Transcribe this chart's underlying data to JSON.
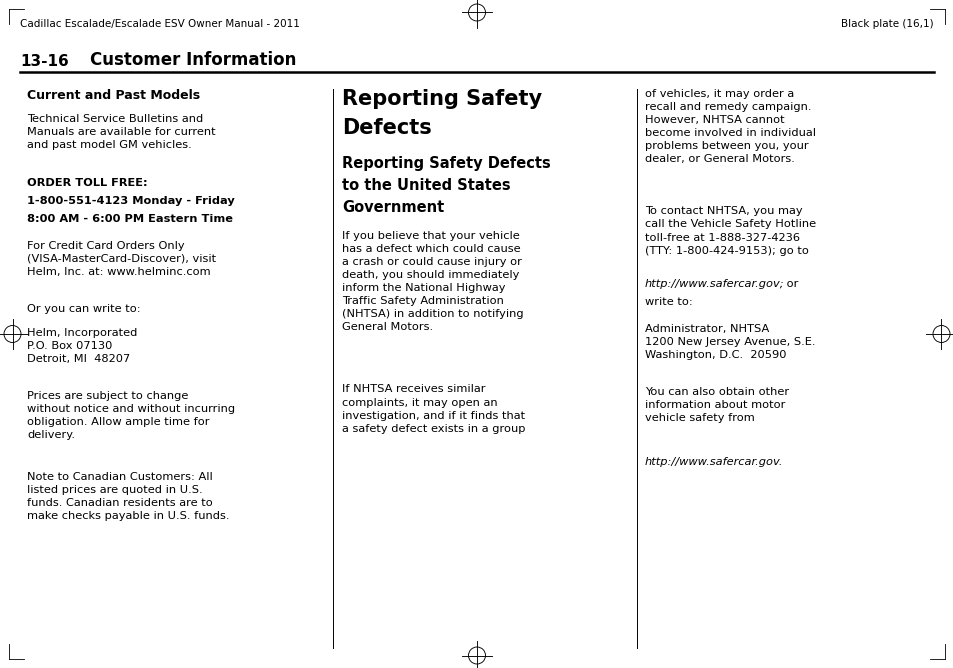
{
  "bg_color": "#ffffff",
  "text_color": "#000000",
  "page_width": 9.54,
  "page_height": 6.68,
  "header_left": "Cadillac Escalade/Escalade ESV Owner Manual - 2011",
  "header_right": "Black plate (16,1)",
  "section_number": "13-16",
  "section_title": "Customer Information",
  "col1_heading": "Current and Past Models",
  "col1_para1": "Technical Service Bulletins and\nManuals are available for current\nand past model GM vehicles.",
  "col1_bold1_line1": "ORDER TOLL FREE:",
  "col1_bold1_line2": "1-800-551-4123 Monday - Friday",
  "col1_bold1_line3": "8:00 AM - 6:00 PM Eastern Time",
  "col1_para2": "For Credit Card Orders Only\n(VISA-MasterCard-Discover), visit\nHelm, Inc. at: www.helminc.com",
  "col1_para3": "Or you can write to:",
  "col1_para4": "Helm, Incorporated\nP.O. Box 07130\nDetroit, MI  48207",
  "col1_para5": "Prices are subject to change\nwithout notice and without incurring\nobligation. Allow ample time for\ndelivery.",
  "col1_para6": "Note to Canadian Customers: All\nlisted prices are quoted in U.S.\nfunds. Canadian residents are to\nmake checks payable in U.S. funds.",
  "col2_main_title_line1": "Reporting Safety",
  "col2_main_title_line2": "Defects",
  "col2_sub_title_line1": "Reporting Safety Defects",
  "col2_sub_title_line2": "to the United States",
  "col2_sub_title_line3": "Government",
  "col2_para1": "If you believe that your vehicle\nhas a defect which could cause\na crash or could cause injury or\ndeath, you should immediately\ninform the National Highway\nTraffic Safety Administration\n(NHTSA) in addition to notifying\nGeneral Motors.",
  "col2_para2": "If NHTSA receives similar\ncomplaints, it may open an\ninvestigation, and if it finds that\na safety defect exists in a group",
  "col3_para1": "of vehicles, it may order a\nrecall and remedy campaign.\nHowever, NHTSA cannot\nbecome involved in individual\nproblems between you, your\ndealer, or General Motors.",
  "col3_para2_normal1": "To contact NHTSA, you may\ncall the Vehicle Safety Hotline\ntoll-free at 1-888-327-4236\n(TTY: 1-800-424-9153); go to",
  "col3_para2_italic": "http://www.safercar.gov;",
  "col3_para2_normal2": " or",
  "col3_para2_normal3": "write to:",
  "col3_para3": "Administrator, NHTSA\n1200 New Jersey Avenue, S.E.\nWashington, D.C.  20590",
  "col3_para4_normal": "You can also obtain other\ninformation about motor\nvehicle safety from",
  "col3_para4_italic": "http://www.safercar.gov.",
  "font_size_header": 7.5,
  "font_size_body": 8.2,
  "font_size_section_num": 11,
  "font_size_section_title": 12,
  "font_size_col1_heading": 9,
  "font_size_col2_main": 15,
  "font_size_col2_sub": 10.5
}
